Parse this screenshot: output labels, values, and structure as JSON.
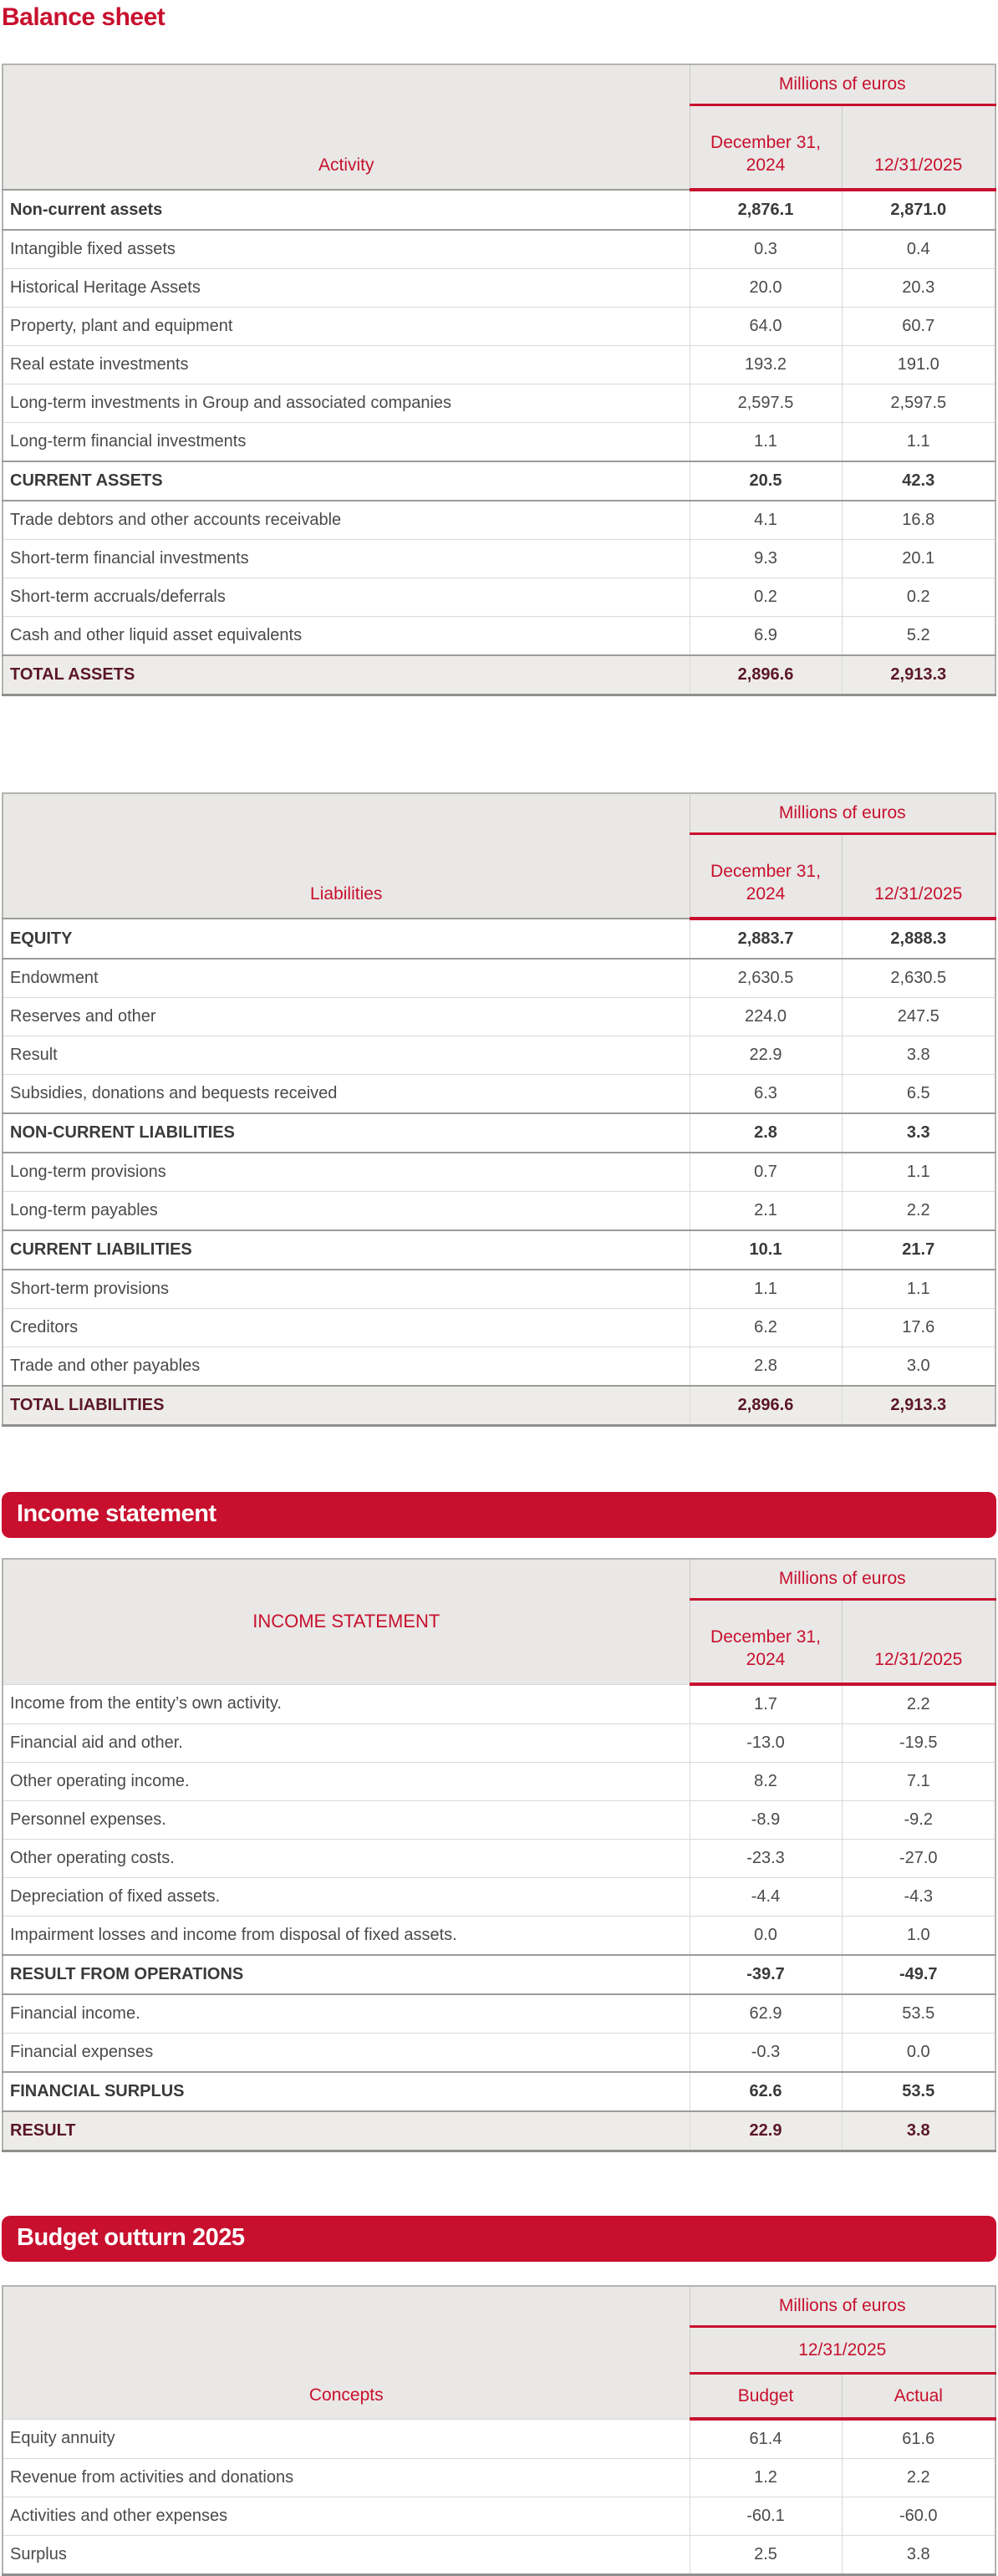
{
  "page": {
    "title": "Balance sheet"
  },
  "banners": {
    "income": "Income statement",
    "budget": "Budget outturn 2025"
  },
  "colors": {
    "red": "#c8102e",
    "maroon": "#5b1726",
    "header_bg": "#e9e8e6",
    "total_bg": "#edecea",
    "body_text": "#4a4a4a",
    "bold_text": "#3a3a3a"
  },
  "tables": [
    {
      "id": "activity",
      "label": "Activity",
      "unit": "Millions of euros",
      "columns": [
        "December 31, 2024",
        "12/31/2025"
      ],
      "rows": [
        {
          "label": "Non-current assets",
          "v1": "2,876.1",
          "v2": "2,871.0",
          "style": "section"
        },
        {
          "label": "Intangible fixed assets",
          "v1": "0.3",
          "v2": "0.4",
          "style": "item"
        },
        {
          "label": "Historical Heritage Assets",
          "v1": "20.0",
          "v2": "20.3",
          "style": "item"
        },
        {
          "label": "Property, plant and equipment",
          "v1": "64.0",
          "v2": "60.7",
          "style": "item"
        },
        {
          "label": "Real estate investments",
          "v1": "193.2",
          "v2": "191.0",
          "style": "item"
        },
        {
          "label": "Long-term investments in Group and associated companies",
          "v1": "2,597.5",
          "v2": "2,597.5",
          "style": "item"
        },
        {
          "label": "Long-term financial investments",
          "v1": "1.1",
          "v2": "1.1",
          "style": "item"
        },
        {
          "label": "CURRENT ASSETS",
          "v1": "20.5",
          "v2": "42.3",
          "style": "section"
        },
        {
          "label": "Trade debtors and other accounts receivable",
          "v1": "4.1",
          "v2": "16.8",
          "style": "item"
        },
        {
          "label": "Short-term financial investments",
          "v1": "9.3",
          "v2": "20.1",
          "style": "item"
        },
        {
          "label": "Short-term accruals/deferrals",
          "v1": "0.2",
          "v2": "0.2",
          "style": "item"
        },
        {
          "label": "Cash and other liquid asset equivalents",
          "v1": "6.9",
          "v2": "5.2",
          "style": "item"
        },
        {
          "label": "TOTAL ASSETS",
          "v1": "2,896.6",
          "v2": "2,913.3",
          "style": "total"
        }
      ]
    },
    {
      "id": "liabilities",
      "label": "Liabilities",
      "unit": "Millions of euros",
      "columns": [
        "December 31, 2024",
        "12/31/2025"
      ],
      "rows": [
        {
          "label": "EQUITY",
          "v1": "2,883.7",
          "v2": "2,888.3",
          "style": "section"
        },
        {
          "label": "Endowment",
          "v1": "2,630.5",
          "v2": "2,630.5",
          "style": "item"
        },
        {
          "label": "Reserves and other",
          "v1": "224.0",
          "v2": "247.5",
          "style": "item"
        },
        {
          "label": "Result",
          "v1": "22.9",
          "v2": "3.8",
          "style": "item"
        },
        {
          "label": "Subsidies, donations and bequests received",
          "v1": "6.3",
          "v2": "6.5",
          "style": "item"
        },
        {
          "label": "NON-CURRENT LIABILITIES",
          "v1": "2.8",
          "v2": "3.3",
          "style": "section"
        },
        {
          "label": "Long-term provisions",
          "v1": "0.7",
          "v2": "1.1",
          "style": "item"
        },
        {
          "label": "Long-term payables",
          "v1": "2.1",
          "v2": "2.2",
          "style": "item"
        },
        {
          "label": "CURRENT LIABILITIES",
          "v1": "10.1",
          "v2": "21.7",
          "style": "section"
        },
        {
          "label": "Short-term provisions",
          "v1": "1.1",
          "v2": "1.1",
          "style": "item"
        },
        {
          "label": "Creditors",
          "v1": "6.2",
          "v2": "17.6",
          "style": "item"
        },
        {
          "label": "Trade and other payables",
          "v1": "2.8",
          "v2": "3.0",
          "style": "item"
        },
        {
          "label": "TOTAL LIABILITIES",
          "v1": "2,896.6",
          "v2": "2,913.3",
          "style": "total"
        }
      ]
    },
    {
      "id": "income",
      "label": "INCOME STATEMENT",
      "unit": "Millions of euros",
      "columns": [
        "December 31, 2024",
        "12/31/2025"
      ],
      "rows": [
        {
          "label": "Income from the entity’s own activity.",
          "v1": "1.7",
          "v2": "2.2",
          "style": "item"
        },
        {
          "label": "Financial aid and other.",
          "v1": "-13.0",
          "v2": "-19.5",
          "style": "item"
        },
        {
          "label": "Other operating income.",
          "v1": "8.2",
          "v2": "7.1",
          "style": "item"
        },
        {
          "label": "Personnel expenses.",
          "v1": "-8.9",
          "v2": "-9.2",
          "style": "item"
        },
        {
          "label": "Other operating costs.",
          "v1": "-23.3",
          "v2": "-27.0",
          "style": "item"
        },
        {
          "label": "Depreciation of fixed assets.",
          "v1": "-4.4",
          "v2": "-4.3",
          "style": "item"
        },
        {
          "label": "Impairment losses and income from disposal of fixed assets.",
          "v1": "0.0",
          "v2": "1.0",
          "style": "item"
        },
        {
          "label": "RESULT FROM OPERATIONS",
          "v1": "-39.7",
          "v2": "-49.7",
          "style": "section"
        },
        {
          "label": "Financial income.",
          "v1": "62.9",
          "v2": "53.5",
          "style": "item"
        },
        {
          "label": "Financial expenses",
          "v1": "-0.3",
          "v2": "0.0",
          "style": "item"
        },
        {
          "label": "FINANCIAL SURPLUS",
          "v1": "62.6",
          "v2": "53.5",
          "style": "section"
        },
        {
          "label": "RESULT",
          "v1": "22.9",
          "v2": "3.8",
          "style": "total"
        }
      ]
    },
    {
      "id": "budget",
      "label": "Concepts",
      "unit": "Millions of euros",
      "period": "12/31/2025",
      "columns": [
        "Budget",
        "Actual"
      ],
      "rows": [
        {
          "label": "Equity annuity",
          "v1": "61.4",
          "v2": "61.6",
          "style": "item"
        },
        {
          "label": "Revenue from activities and donations",
          "v1": "1.2",
          "v2": "2.2",
          "style": "item"
        },
        {
          "label": "Activities and other expenses",
          "v1": "-60.1",
          "v2": "-60.0",
          "style": "item"
        },
        {
          "label": "Surplus",
          "v1": "2.5",
          "v2": "3.8",
          "style": "item"
        }
      ]
    }
  ]
}
